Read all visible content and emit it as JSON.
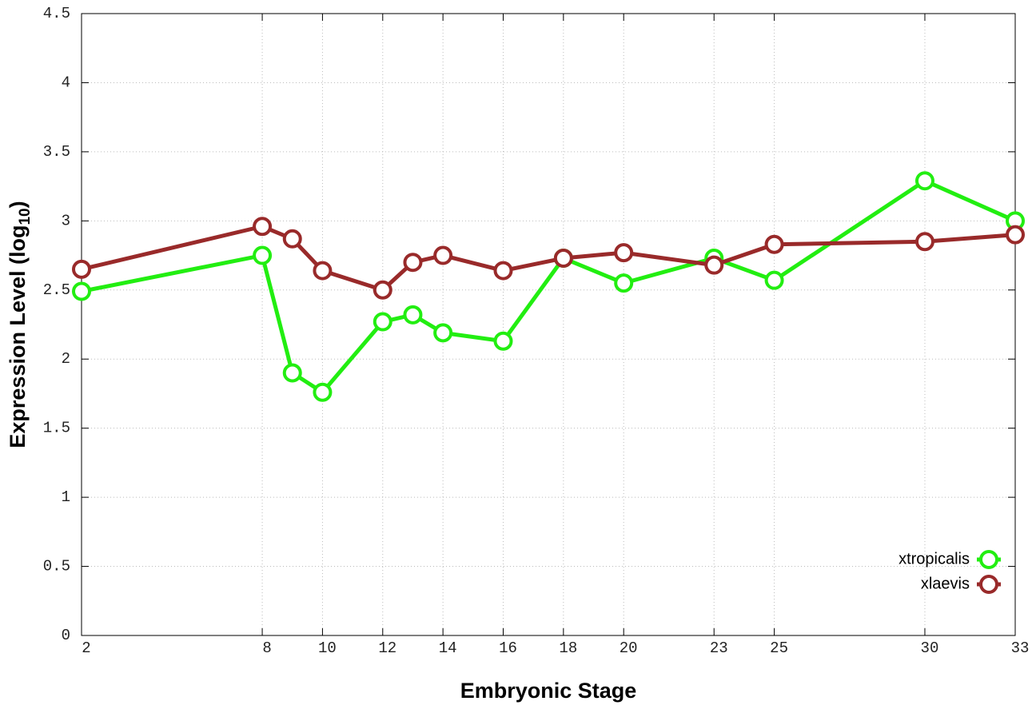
{
  "chart_data": {
    "type": "line",
    "x_label": "Embryonic Stage",
    "y_label_parts": [
      "Expression Level (log",
      "10",
      ")"
    ],
    "x": [
      2,
      8,
      9,
      10,
      12,
      13,
      14,
      16,
      18,
      20,
      23,
      25,
      30,
      33
    ],
    "series": [
      {
        "name": "xtropicalis",
        "color": "#22ee11",
        "values": [
          2.49,
          2.75,
          1.9,
          1.76,
          2.27,
          2.32,
          2.19,
          2.13,
          2.73,
          2.55,
          2.73,
          2.57,
          3.29,
          3.0
        ]
      },
      {
        "name": "xlaevis",
        "color": "#992a2a",
        "values": [
          2.65,
          2.96,
          2.87,
          2.64,
          2.5,
          2.7,
          2.75,
          2.64,
          2.73,
          2.77,
          2.68,
          2.83,
          2.85,
          2.9
        ]
      }
    ],
    "xlim": [
      2,
      33
    ],
    "xticks": [
      2,
      8,
      10,
      12,
      14,
      16,
      18,
      20,
      23,
      25,
      30,
      33
    ],
    "ylim": [
      0,
      4.5
    ],
    "yticks": [
      0,
      0.5,
      1,
      1.5,
      2,
      2.5,
      3,
      3.5,
      4,
      4.5
    ],
    "grid": true,
    "legend": "bottom-right"
  }
}
